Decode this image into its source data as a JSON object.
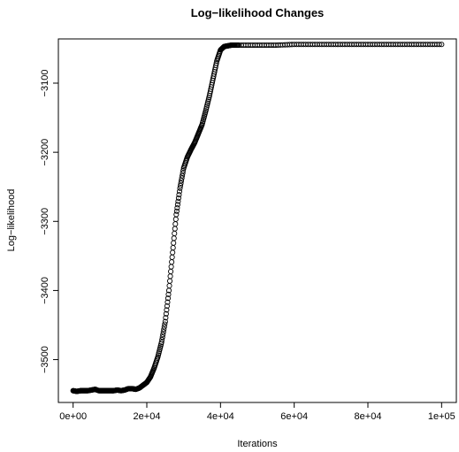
{
  "chart_data": {
    "type": "scatter",
    "title": "Log−likelihood Changes",
    "xlabel": "Iterations",
    "ylabel": "Log−likelihood",
    "xlim": [
      -4000,
      104000
    ],
    "ylim": [
      -3562,
      -3036
    ],
    "xticks": [
      0,
      20000,
      40000,
      60000,
      80000,
      100000
    ],
    "xtick_labels": [
      "0e+00",
      "2e+04",
      "4e+04",
      "6e+04",
      "8e+04",
      "1e+05"
    ],
    "yticks": [
      -3500,
      -3400,
      -3300,
      -3200,
      -3100
    ],
    "ytick_labels": [
      "−3500",
      "−3400",
      "−3300",
      "−3200",
      "−3100"
    ],
    "grid": false,
    "marker": "open-circle",
    "series": [
      {
        "points": [
          [
            0,
            -3545
          ],
          [
            1000,
            -3546
          ],
          [
            2000,
            -3545
          ],
          [
            3000,
            -3545
          ],
          [
            4000,
            -3545
          ],
          [
            5000,
            -3544
          ],
          [
            6000,
            -3543
          ],
          [
            7000,
            -3545
          ],
          [
            8000,
            -3545
          ],
          [
            9000,
            -3545
          ],
          [
            10000,
            -3545
          ],
          [
            11000,
            -3545
          ],
          [
            12000,
            -3544
          ],
          [
            13000,
            -3545
          ],
          [
            14000,
            -3544
          ],
          [
            15000,
            -3542
          ],
          [
            16000,
            -3542
          ],
          [
            17000,
            -3543
          ],
          [
            18000,
            -3541
          ],
          [
            19000,
            -3537
          ],
          [
            20000,
            -3533
          ],
          [
            21000,
            -3525
          ],
          [
            22000,
            -3512
          ],
          [
            23000,
            -3496
          ],
          [
            24000,
            -3475
          ],
          [
            25000,
            -3445
          ],
          [
            26000,
            -3400
          ],
          [
            27000,
            -3345
          ],
          [
            28000,
            -3290
          ],
          [
            29000,
            -3252
          ],
          [
            30000,
            -3223
          ],
          [
            31000,
            -3207
          ],
          [
            32000,
            -3196
          ],
          [
            33000,
            -3186
          ],
          [
            34000,
            -3173
          ],
          [
            35000,
            -3160
          ],
          [
            36000,
            -3140
          ],
          [
            37000,
            -3118
          ],
          [
            38000,
            -3093
          ],
          [
            39000,
            -3068
          ],
          [
            40000,
            -3052
          ],
          [
            41000,
            -3047
          ],
          [
            42000,
            -3046
          ],
          [
            43000,
            -3045
          ],
          [
            45000,
            -3045
          ],
          [
            50000,
            -3045
          ],
          [
            55000,
            -3045
          ],
          [
            60000,
            -3044
          ],
          [
            65000,
            -3044
          ],
          [
            70000,
            -3044
          ],
          [
            75000,
            -3044
          ],
          [
            80000,
            -3044
          ],
          [
            85000,
            -3044
          ],
          [
            90000,
            -3044
          ],
          [
            95000,
            -3044
          ],
          [
            100000,
            -3044
          ]
        ]
      }
    ]
  }
}
